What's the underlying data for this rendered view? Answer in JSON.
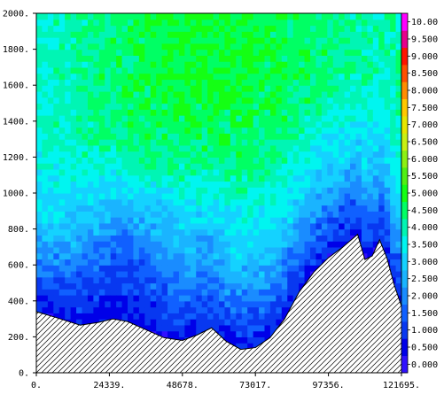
{
  "chart_data": {
    "type": "heatmap",
    "subtype": "filled-contour-cross-section",
    "title": "",
    "xlabel": "",
    "ylabel": "",
    "xlim": [
      0,
      121695
    ],
    "ylim": [
      0,
      2000
    ],
    "x_ticks": [
      "0.",
      "24339.",
      "48678.",
      "73017.",
      "97356.",
      "121695."
    ],
    "x_tick_values": [
      0,
      24339,
      48678,
      73017,
      97356,
      121695
    ],
    "y_ticks": [
      "0.",
      "200.",
      "400.",
      "600.",
      "800.",
      "1000.",
      "1200.",
      "1400.",
      "1600.",
      "1800.",
      "2000."
    ],
    "y_tick_values": [
      0,
      200,
      400,
      600,
      800,
      1000,
      1200,
      1400,
      1600,
      1800,
      2000
    ],
    "colorbar_labels": [
      "0.000",
      "0.500",
      "1.000",
      "1.500",
      "2.000",
      "2.500",
      "3.000",
      "3.500",
      "4.000",
      "4.500",
      "5.000",
      "5.500",
      "6.000",
      "6.500",
      "7.000",
      "7.500",
      "8.000",
      "8.500",
      "9.000",
      "9.500",
      "10.00"
    ],
    "colorbar_colors": [
      "#3010ff",
      "#0000e8",
      "#0838f0",
      "#1060ff",
      "#1a8cff",
      "#1ab4ff",
      "#14d2ff",
      "#00f5f0",
      "#00f5b4",
      "#00ff64",
      "#14ff14",
      "#50f014",
      "#8cf014",
      "#c8f014",
      "#e6e600",
      "#ffc800",
      "#ff8c00",
      "#ff5000",
      "#ff1400",
      "#e6008c",
      "#ff00ff"
    ],
    "terrain": {
      "x": [
        0,
        6085,
        14603,
        20688,
        25555,
        30423,
        36507,
        42592,
        48678,
        53545,
        58413,
        63281,
        68148,
        73017,
        77884,
        82752,
        87619,
        92487,
        97356,
        102223,
        107091,
        109525,
        111959,
        114393,
        116827,
        119261,
        121695
      ],
      "y": [
        340,
        310,
        265,
        280,
        300,
        285,
        240,
        195,
        180,
        210,
        250,
        175,
        130,
        140,
        195,
        300,
        450,
        560,
        640,
        700,
        770,
        630,
        650,
        740,
        640,
        490,
        370
      ]
    },
    "notes": [
      "terrain hatched below surface"
    ],
    "grid": false,
    "legend": "right-colorbar"
  }
}
